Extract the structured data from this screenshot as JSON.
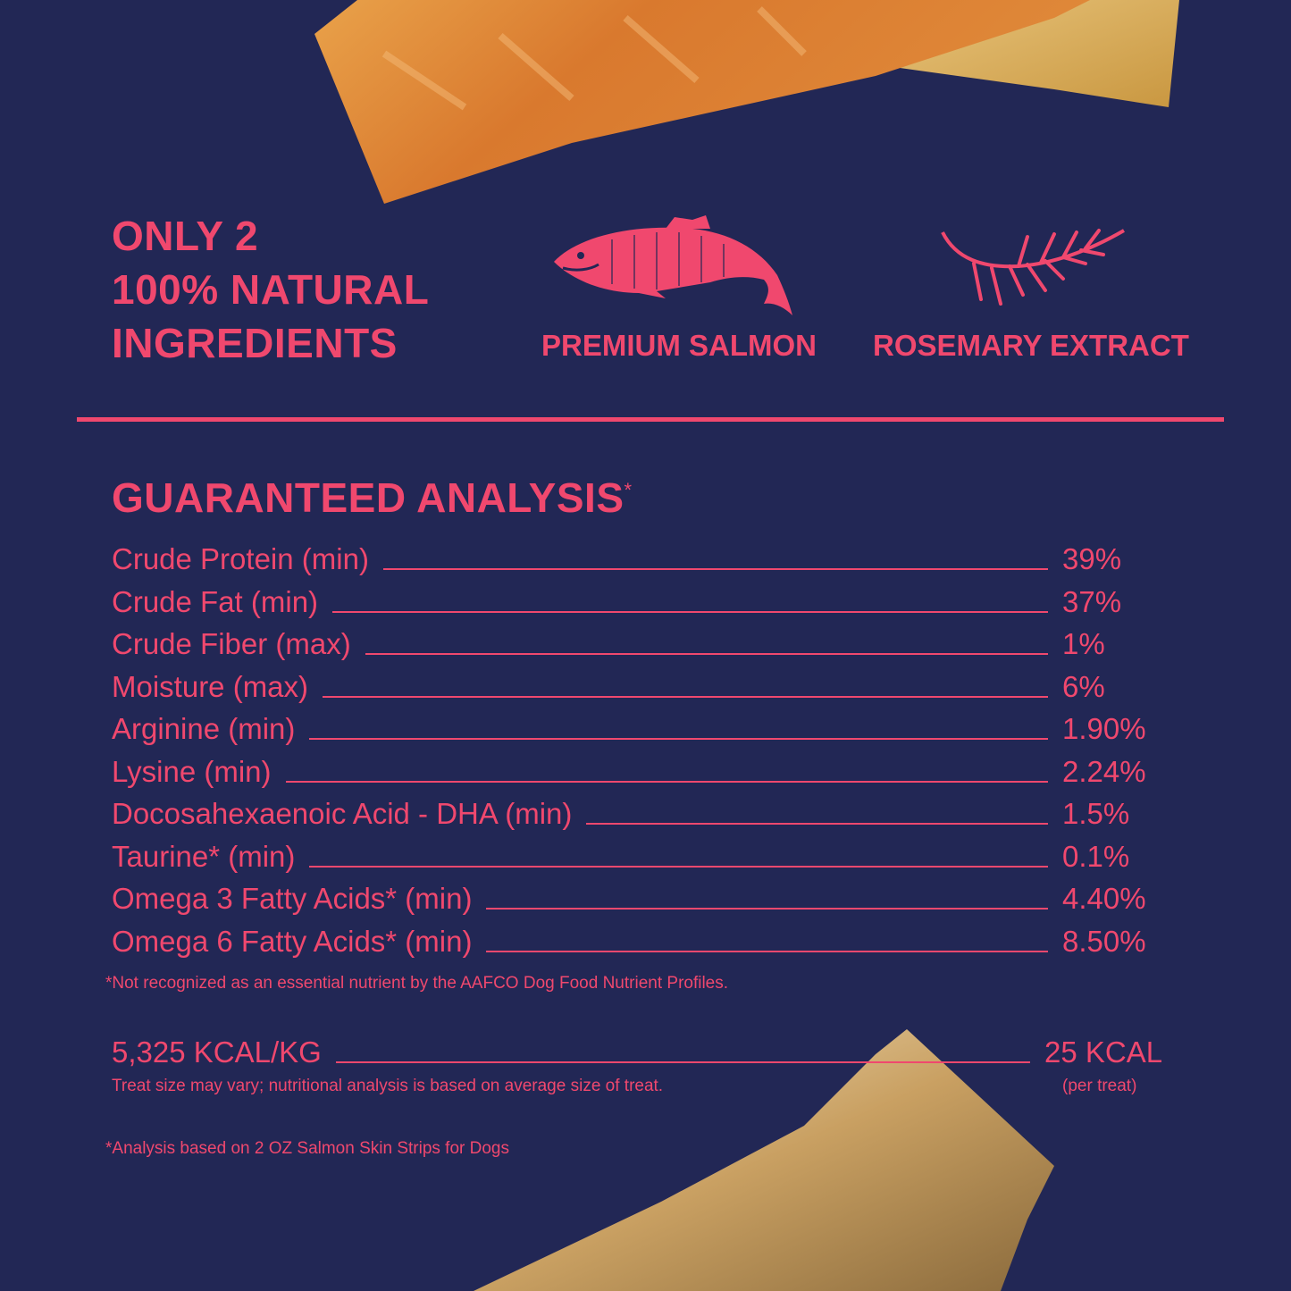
{
  "colors": {
    "background": "#222755",
    "accent": "#f0486e"
  },
  "ingredients": {
    "heading_lines": [
      "ONLY 2",
      "100% NATURAL",
      "INGREDIENTS"
    ],
    "items": [
      {
        "label": "PREMIUM SALMON",
        "icon": "salmon-fish-icon"
      },
      {
        "label": "ROSEMARY EXTRACT",
        "icon": "rosemary-sprig-icon"
      }
    ]
  },
  "analysis": {
    "title": "GUARANTEED ANALYSIS",
    "title_mark": "*",
    "rows": [
      {
        "name": "Crude Protein (min)",
        "value": "39%"
      },
      {
        "name": "Crude Fat (min)",
        "value": "37%"
      },
      {
        "name": "Crude Fiber (max)",
        "value": "1%"
      },
      {
        "name": "Moisture (max)",
        "value": "6%"
      },
      {
        "name": "Arginine (min)",
        "value": "1.90%"
      },
      {
        "name": "Lysine (min)",
        "value": "2.24%"
      },
      {
        "name": "Docosahexaenoic Acid - DHA (min)",
        "value": "1.5%"
      },
      {
        "name": "Taurine* (min)",
        "value": "0.1%"
      },
      {
        "name": "Omega 3 Fatty Acids* (min)",
        "value": "4.40%"
      },
      {
        "name": "Omega 6 Fatty Acids* (min)",
        "value": "8.50%"
      }
    ],
    "footnote": "*Not recognized as an essential nutrient by the AAFCO Dog Food Nutrient Profiles."
  },
  "calories": {
    "per_kg": "5,325 KCAL/KG",
    "per_treat": "25 KCAL",
    "per_treat_note": "(per treat)",
    "disclaimer": "Treat size may vary; nutritional analysis is based on average size of treat."
  },
  "basis_note": "*Analysis based on 2 OZ Salmon Skin Strips for Dogs"
}
